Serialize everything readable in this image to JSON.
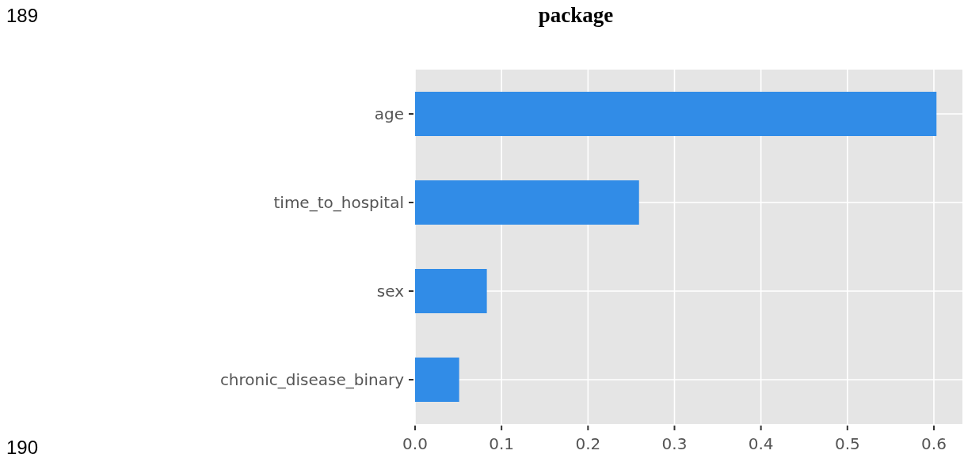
{
  "chart_data": {
    "type": "bar",
    "title": "package",
    "orientation": "horizontal",
    "categories": [
      "age",
      "time_to_hospital",
      "sex",
      "chronic_disease_binary"
    ],
    "values": [
      0.603,
      0.259,
      0.083,
      0.051
    ],
    "color": "#318ce7",
    "xlim": [
      0,
      0.633
    ],
    "xticks": [
      {
        "value": 0,
        "label": "0.0"
      },
      0.1,
      0.2,
      0.3,
      0.4,
      0.5,
      0.6
    ],
    "grid": true,
    "annotations": [
      "189",
      "190"
    ]
  }
}
